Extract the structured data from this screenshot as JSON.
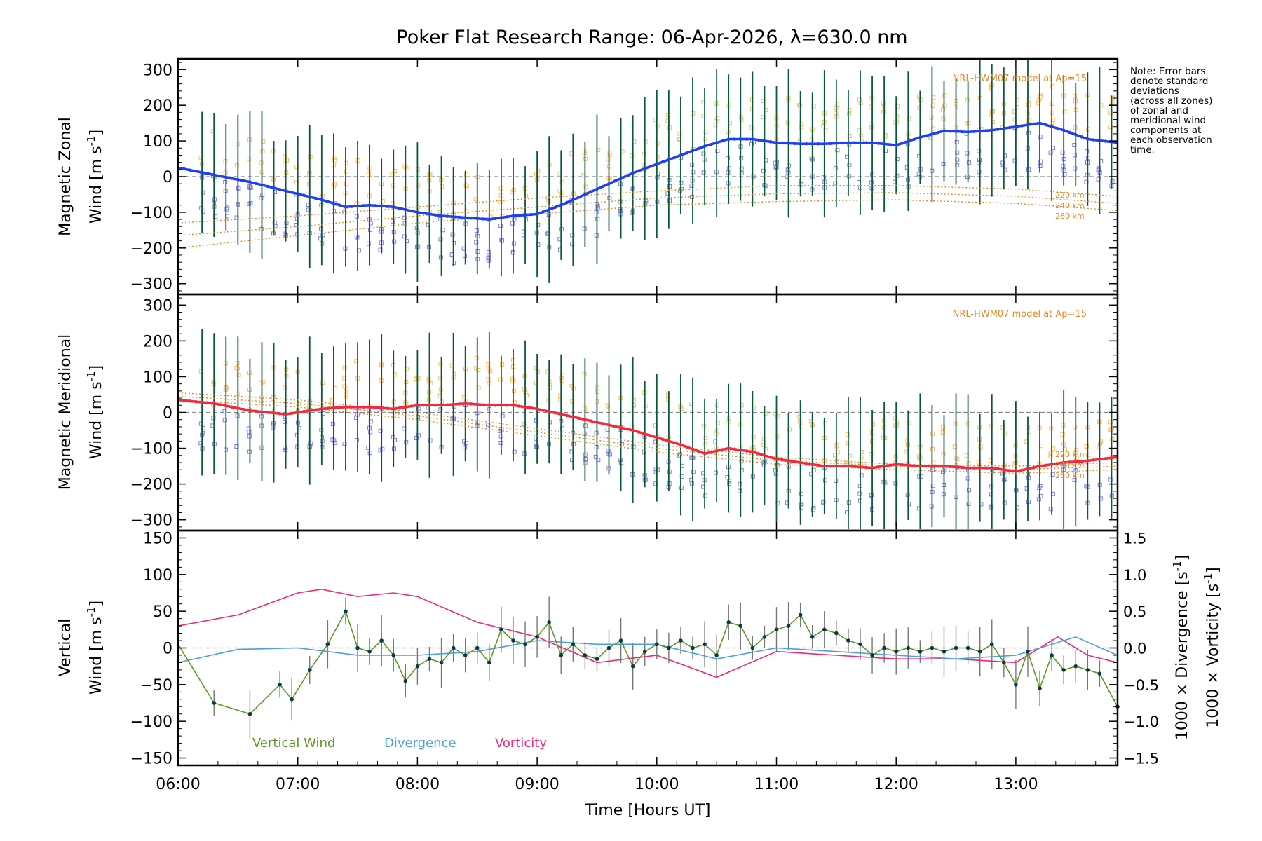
{
  "title": "Poker Flat Research Range: 06-Apr-2026, λ=630.0 nm",
  "note": [
    "Note: Error bars",
    "denote standard",
    "deviations",
    "(across all zones)",
    "of zonal and",
    "meridional wind",
    "components at",
    "each observation",
    "time."
  ],
  "xaxis": {
    "label": "Time [Hours UT]",
    "range_hours": [
      6.0,
      13.85
    ],
    "ticks": [
      {
        "v": 6,
        "label": "06:00"
      },
      {
        "v": 7,
        "label": "07:00"
      },
      {
        "v": 8,
        "label": "08:00"
      },
      {
        "v": 9,
        "label": "09:00"
      },
      {
        "v": 10,
        "label": "10:00"
      },
      {
        "v": 11,
        "label": "11:00"
      },
      {
        "v": 12,
        "label": "12:00"
      },
      {
        "v": 13,
        "label": "13:00"
      }
    ]
  },
  "colors": {
    "zonal": "#1f3ff5",
    "meridional": "#f5283c",
    "model": "#e08a2a",
    "vertical": "#5a9a22",
    "divergence": "#4aa0d8",
    "vorticity": "#f02878",
    "errorbar": "#0a5a3a",
    "scatter_blue": "#8080e0",
    "scatter_orange": "#f8c070"
  },
  "panels": {
    "zonal": {
      "ylabel_line1": "Magnetic Zonal",
      "ylabel_line2": "Wind [m s",
      "ylabel_sup": "-1",
      "ylabel_end": "]",
      "model_label": "NRL-HWM07 model at Ap=15",
      "alt_labels": [
        "220 km",
        "240 km",
        "260 km"
      ],
      "yticks": [
        "300",
        "200",
        "100",
        "0",
        "−100",
        "−200",
        "−300"
      ],
      "ytick_values": [
        300,
        200,
        100,
        0,
        -100,
        -200,
        -300
      ]
    },
    "meridional": {
      "ylabel_line1": "Magnetic Meridional",
      "ylabel_line2": "Wind [m s",
      "ylabel_sup": "-1",
      "ylabel_end": "]",
      "model_label": "NRL-HWM07 model at Ap=15",
      "alt_labels": [
        "220 km",
        "240 km",
        "260 km"
      ],
      "yticks": [
        "300",
        "200",
        "100",
        "0",
        "−100",
        "−200",
        "−300"
      ],
      "ytick_values": [
        300,
        200,
        100,
        0,
        -100,
        -200,
        -300
      ]
    },
    "vertical": {
      "ylabel_line1": "Vertical",
      "ylabel_line2": "Wind [m s",
      "ylabel_sup": "-1",
      "ylabel_end": "]",
      "right_label_div": "1000 × Divergence [s",
      "right_label_vort": "1000 × Vorticity [s",
      "right_sup": "-1",
      "right_end": "]",
      "yticks": [
        "150",
        "100",
        "50",
        "0",
        "−50",
        "−100",
        "−150"
      ],
      "ytick_values": [
        150,
        100,
        50,
        0,
        -50,
        -100,
        -150
      ],
      "rticks": [
        "1.5",
        "1.0",
        "0.5",
        "0.0",
        "−0.5",
        "−1.0",
        "−1.5"
      ],
      "rtick_values": [
        1.5,
        1.0,
        0.5,
        0.0,
        -0.5,
        -1.0,
        -1.5
      ],
      "legend": {
        "vertical": "Vertical Wind",
        "divergence": "Divergence",
        "vorticity": "Vorticity"
      }
    }
  },
  "chart_data": [
    {
      "type": "line",
      "title": "Magnetic Zonal Wind",
      "ylabel": "Magnetic Zonal Wind [m s-1]",
      "ylim": [
        -330,
        330
      ],
      "series": [
        {
          "name": "Zonal wind (mean)",
          "x": [
            6.0,
            6.3,
            6.6,
            6.9,
            7.2,
            7.4,
            7.6,
            7.8,
            8.0,
            8.2,
            8.4,
            8.6,
            8.8,
            9.0,
            9.2,
            9.4,
            9.6,
            9.8,
            10.0,
            10.2,
            10.4,
            10.6,
            10.8,
            11.0,
            11.2,
            11.4,
            11.6,
            11.8,
            12.0,
            12.2,
            12.4,
            12.6,
            12.8,
            13.0,
            13.2,
            13.4,
            13.6,
            13.85
          ],
          "y": [
            25,
            5,
            -15,
            -40,
            -65,
            -85,
            -80,
            -85,
            -100,
            -110,
            -115,
            -120,
            -110,
            -105,
            -80,
            -50,
            -20,
            10,
            35,
            60,
            85,
            105,
            105,
            95,
            92,
            92,
            95,
            95,
            88,
            110,
            128,
            125,
            130,
            140,
            150,
            130,
            105,
            95
          ]
        },
        {
          "name": "HWM07 220 km",
          "x": [
            6.0,
            7.0,
            8.0,
            9.0,
            10.0,
            11.0,
            12.0,
            13.0,
            13.85
          ],
          "y": [
            -130,
            -110,
            -85,
            -60,
            -40,
            -25,
            -25,
            -35,
            -55
          ]
        },
        {
          "name": "HWM07 240 km",
          "x": [
            6.0,
            7.0,
            8.0,
            9.0,
            10.0,
            11.0,
            12.0,
            13.0,
            13.85
          ],
          "y": [
            -165,
            -140,
            -110,
            -85,
            -60,
            -48,
            -45,
            -55,
            -75
          ]
        },
        {
          "name": "HWM07 260 km",
          "x": [
            6.0,
            7.0,
            8.0,
            9.0,
            10.0,
            11.0,
            12.0,
            13.0,
            13.85
          ],
          "y": [
            -200,
            -165,
            -130,
            -105,
            -80,
            -70,
            -65,
            -75,
            -95
          ]
        }
      ]
    },
    {
      "type": "line",
      "title": "Magnetic Meridional Wind",
      "ylabel": "Magnetic Meridional Wind [m s-1]",
      "ylim": [
        -330,
        330
      ],
      "series": [
        {
          "name": "Meridional wind (mean)",
          "x": [
            6.0,
            6.3,
            6.6,
            6.9,
            7.2,
            7.4,
            7.6,
            7.8,
            8.0,
            8.2,
            8.4,
            8.6,
            8.8,
            9.0,
            9.2,
            9.4,
            9.6,
            9.8,
            10.0,
            10.2,
            10.4,
            10.6,
            10.8,
            11.0,
            11.2,
            11.4,
            11.6,
            11.8,
            12.0,
            12.2,
            12.4,
            12.6,
            12.8,
            13.0,
            13.2,
            13.4,
            13.6,
            13.85
          ],
          "y": [
            35,
            25,
            5,
            -5,
            10,
            15,
            15,
            10,
            20,
            20,
            25,
            20,
            20,
            10,
            -5,
            -20,
            -35,
            -50,
            -70,
            -90,
            -115,
            -100,
            -110,
            -130,
            -140,
            -150,
            -150,
            -155,
            -145,
            -150,
            -150,
            -155,
            -155,
            -165,
            -150,
            -140,
            -135,
            -125
          ]
        },
        {
          "name": "HWM07 220 km",
          "x": [
            6.0,
            7.0,
            8.0,
            9.0,
            10.0,
            11.0,
            12.0,
            13.0,
            13.85
          ],
          "y": [
            55,
            35,
            0,
            -45,
            -90,
            -125,
            -145,
            -150,
            -140
          ]
        },
        {
          "name": "HWM07 240 km",
          "x": [
            6.0,
            7.0,
            8.0,
            9.0,
            10.0,
            11.0,
            12.0,
            13.0,
            13.85
          ],
          "y": [
            45,
            25,
            -10,
            -55,
            -100,
            -135,
            -150,
            -160,
            -150
          ]
        },
        {
          "name": "HWM07 260 km",
          "x": [
            6.0,
            7.0,
            8.0,
            9.0,
            10.0,
            11.0,
            12.0,
            13.0,
            13.85
          ],
          "y": [
            35,
            15,
            -20,
            -65,
            -110,
            -145,
            -160,
            -170,
            -160
          ]
        }
      ]
    },
    {
      "type": "line",
      "title": "Vertical Wind, Divergence, Vorticity",
      "ylabel": "Vertical Wind [m s-1]",
      "ylim": [
        -160,
        160
      ],
      "y2label": "1000 × Divergence / Vorticity [s-1]",
      "y2lim": [
        -1.6,
        1.6
      ],
      "series": [
        {
          "name": "Vertical Wind",
          "axis": "left",
          "x": [
            6.0,
            6.3,
            6.6,
            6.85,
            6.95,
            7.1,
            7.25,
            7.4,
            7.5,
            7.6,
            7.7,
            7.8,
            7.9,
            8.0,
            8.1,
            8.2,
            8.3,
            8.4,
            8.5,
            8.6,
            8.7,
            8.8,
            8.9,
            9.0,
            9.1,
            9.2,
            9.3,
            9.4,
            9.5,
            9.6,
            9.7,
            9.8,
            9.9,
            10.0,
            10.1,
            10.2,
            10.3,
            10.4,
            10.5,
            10.6,
            10.7,
            10.8,
            10.9,
            11.0,
            11.1,
            11.2,
            11.3,
            11.4,
            11.5,
            11.6,
            11.7,
            11.8,
            11.9,
            12.0,
            12.1,
            12.2,
            12.3,
            12.4,
            12.5,
            12.6,
            12.7,
            12.8,
            12.9,
            13.0,
            13.1,
            13.2,
            13.3,
            13.4,
            13.5,
            13.6,
            13.7,
            13.85
          ],
          "y": [
            5,
            -75,
            -90,
            -50,
            -70,
            -30,
            5,
            50,
            0,
            -5,
            10,
            -10,
            -45,
            -25,
            -15,
            -20,
            0,
            -10,
            0,
            -20,
            25,
            10,
            5,
            15,
            35,
            -10,
            5,
            -10,
            -15,
            0,
            10,
            -25,
            -5,
            5,
            0,
            10,
            0,
            5,
            -10,
            35,
            30,
            0,
            15,
            25,
            30,
            45,
            15,
            25,
            20,
            10,
            5,
            -10,
            0,
            -5,
            0,
            -5,
            0,
            -5,
            0,
            0,
            -5,
            5,
            -20,
            -50,
            -5,
            -55,
            -10,
            -30,
            -25,
            -30,
            -35,
            -80
          ]
        },
        {
          "name": "Divergence",
          "axis": "right",
          "x": [
            6.0,
            6.5,
            7.0,
            7.5,
            8.0,
            8.5,
            9.0,
            9.5,
            10.0,
            10.5,
            11.0,
            11.5,
            12.0,
            12.5,
            13.0,
            13.5,
            13.85
          ],
          "y": [
            -0.2,
            -0.02,
            0.0,
            -0.1,
            -0.1,
            -0.05,
            0.1,
            0.05,
            0.05,
            -0.15,
            0.0,
            -0.05,
            -0.1,
            -0.15,
            -0.1,
            0.15,
            -0.1
          ]
        },
        {
          "name": "Vorticity",
          "axis": "right",
          "x": [
            6.0,
            6.5,
            7.0,
            7.2,
            7.5,
            7.8,
            8.0,
            8.5,
            9.0,
            9.5,
            10.0,
            10.5,
            11.0,
            11.5,
            12.0,
            12.5,
            13.0,
            13.35,
            13.6,
            13.85
          ],
          "y": [
            0.3,
            0.45,
            0.75,
            0.8,
            0.7,
            0.75,
            0.7,
            0.35,
            0.15,
            -0.2,
            -0.1,
            -0.4,
            -0.05,
            -0.1,
            -0.15,
            -0.15,
            -0.2,
            0.15,
            -0.1,
            -0.2
          ]
        }
      ]
    }
  ]
}
